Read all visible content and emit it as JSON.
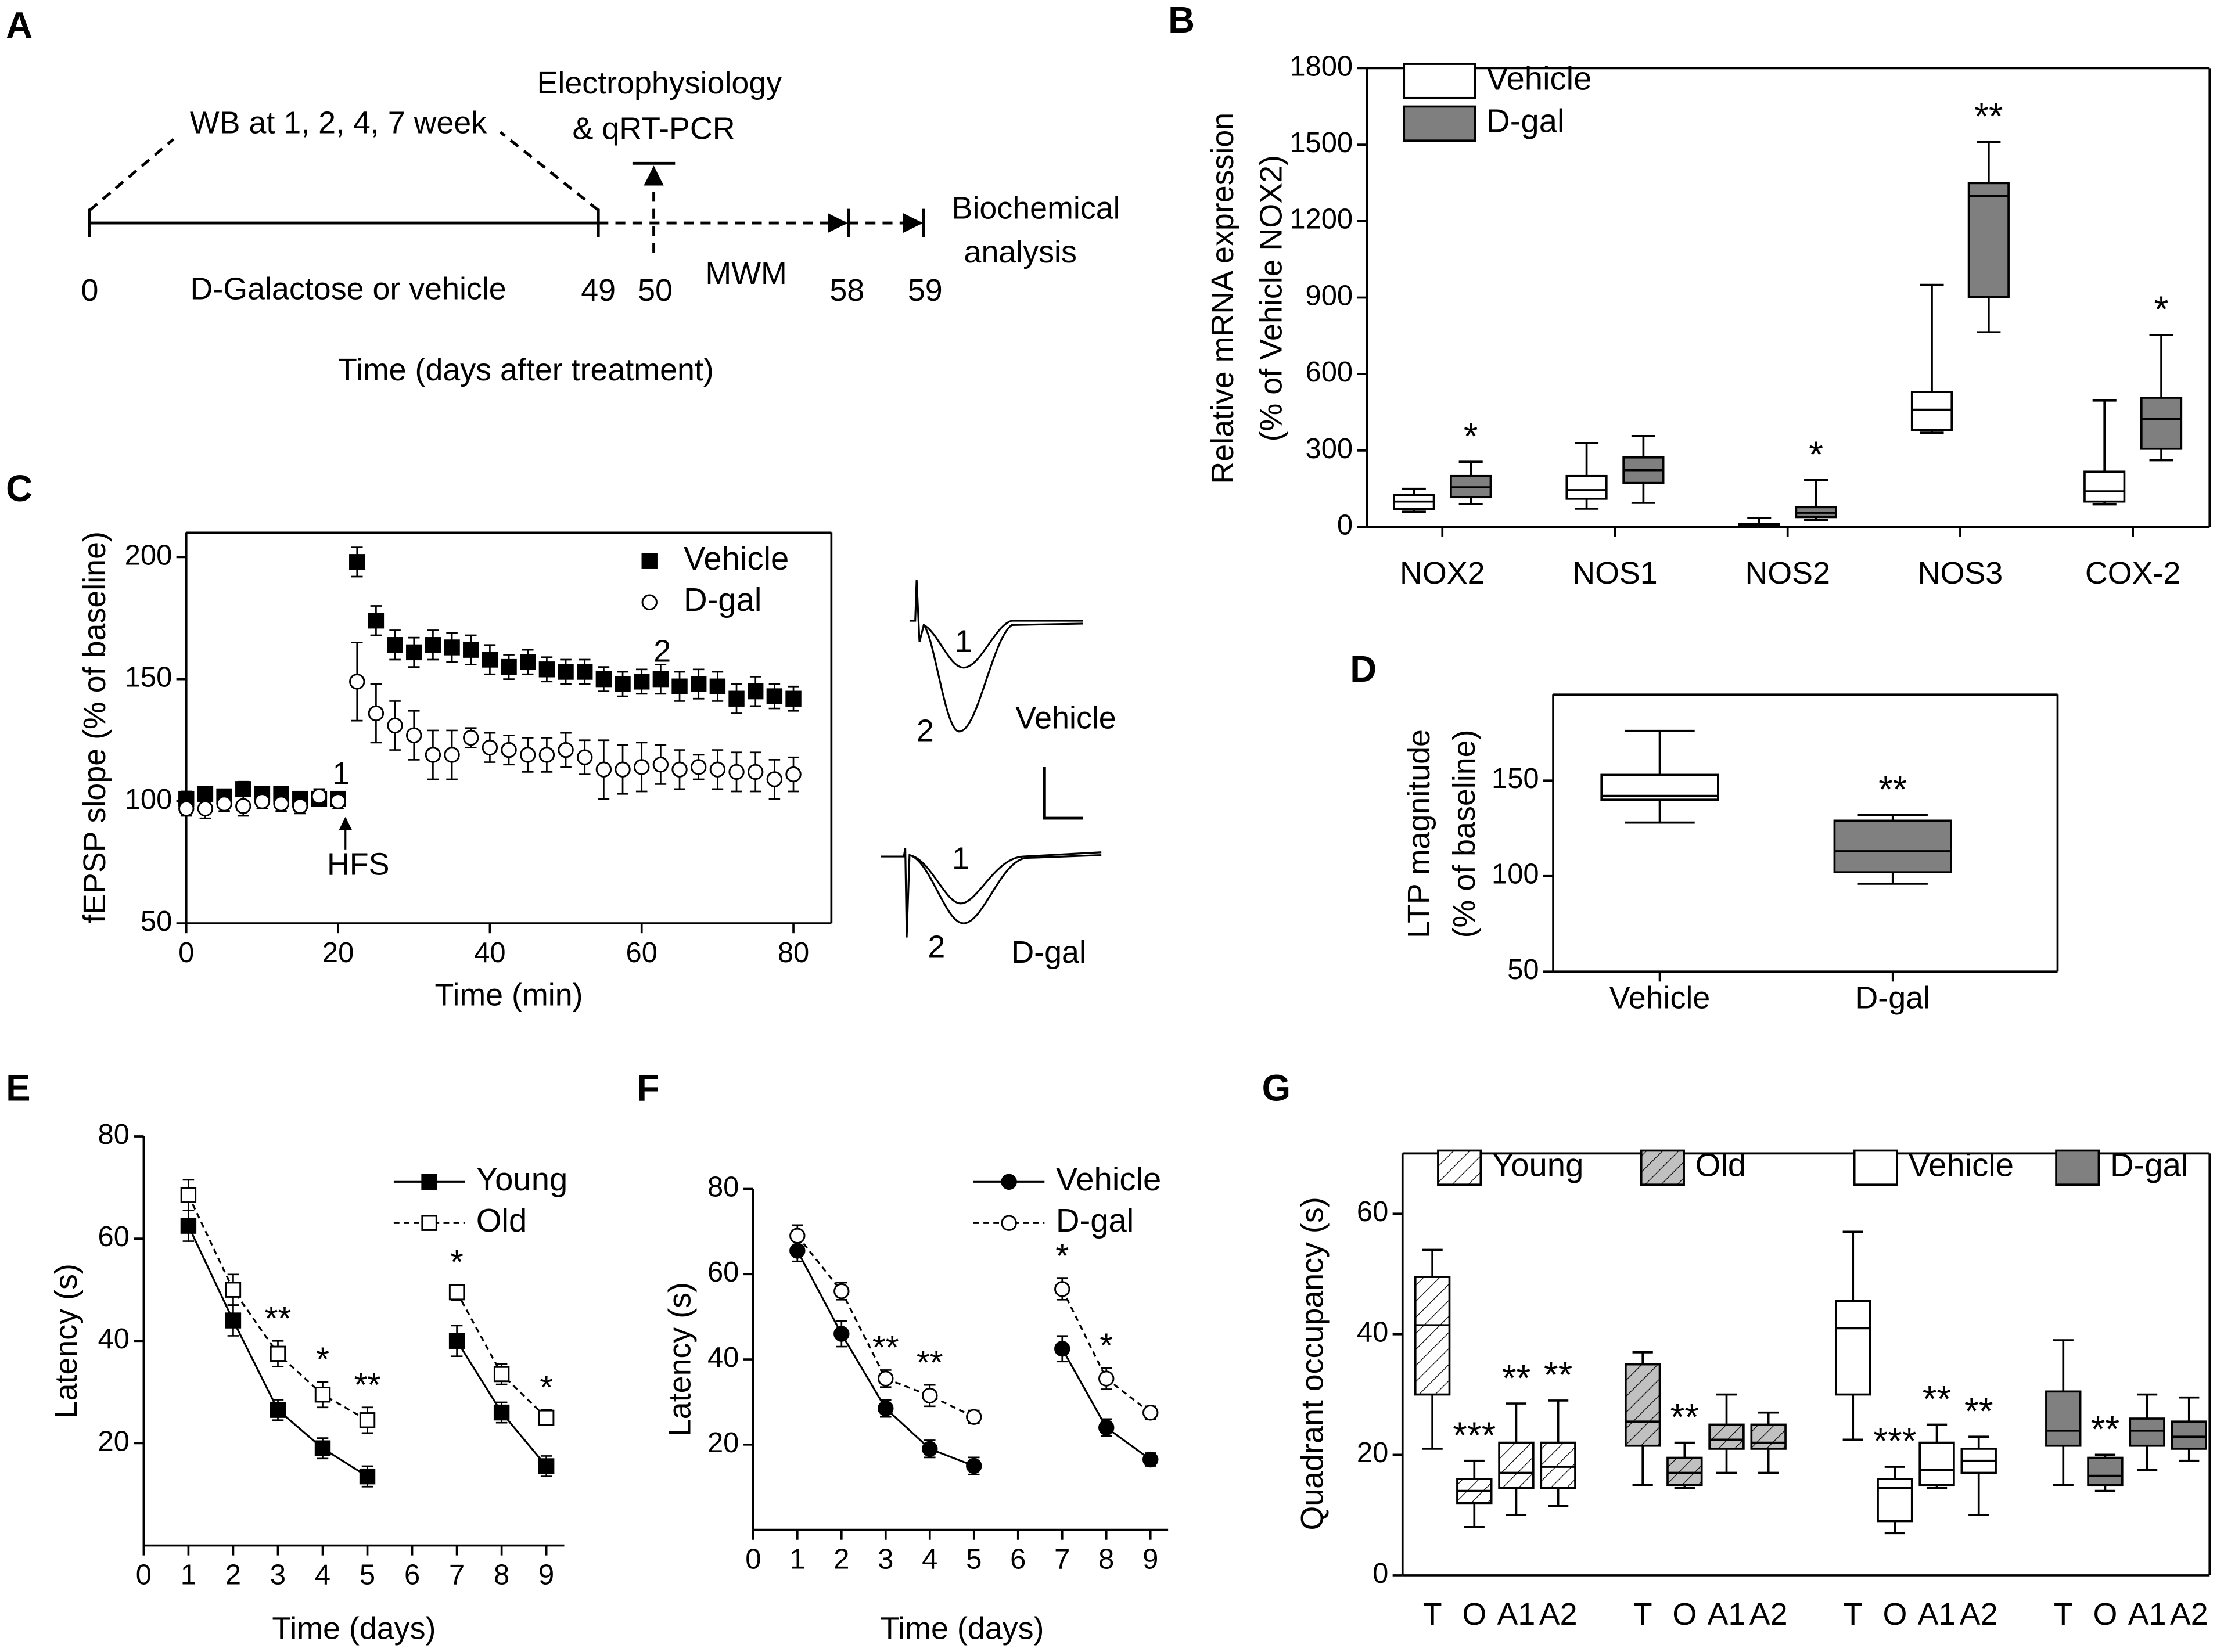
{
  "panel_labels": [
    "A",
    "B",
    "C",
    "D",
    "E",
    "F",
    "G"
  ],
  "timeline": {
    "wb": "WB at 1, 2, 4, 7 week",
    "electro": [
      "Electrophysiology",
      "& qRT-PCR"
    ],
    "biochem": [
      "Biochemical",
      "analysis"
    ],
    "treatment": "D-Galactose or vehicle",
    "mwm": "MWM",
    "ticks": [
      "0",
      "49",
      "50",
      "58",
      "59"
    ],
    "xlabel": "Time (days after treatment)"
  },
  "traces": {
    "vehicle": {
      "name": "Vehicle",
      "labels": [
        "1",
        "2"
      ]
    },
    "dgal": {
      "name": "D-gal",
      "labels": [
        "1",
        "2"
      ]
    }
  },
  "chart_data": [
    {
      "type": "scatter",
      "xlabel": "Time (min)",
      "ylabel": "fEPSP slope (% of baseline)",
      "xlim": [
        0,
        85
      ],
      "xticks": [
        0,
        20,
        40,
        60,
        80
      ],
      "ylim": [
        50,
        210
      ],
      "yticks": [
        50,
        100,
        150,
        200
      ],
      "legend": "upper right",
      "annotations": [
        "1",
        "2",
        "HFS"
      ],
      "x": [
        0,
        2.5,
        5,
        7.5,
        10,
        12.5,
        15,
        17.5,
        20,
        22.5,
        25,
        27.5,
        30,
        32.5,
        35,
        37.5,
        40,
        42.5,
        45,
        47.5,
        50,
        52.5,
        55,
        57.5,
        60,
        62.5,
        65,
        67.5,
        70,
        72.5,
        75,
        77.5,
        80
      ],
      "series": [
        {
          "name": "Vehicle",
          "color": "#000000",
          "marker": "square",
          "marker_fill": "#000000",
          "values": [
            101,
            103,
            102,
            105,
            103,
            103,
            101,
            101,
            101,
            198,
            174,
            164,
            161,
            164,
            163,
            162,
            158,
            155,
            157,
            154,
            153,
            153,
            150,
            148,
            149,
            150,
            147,
            148,
            147,
            142,
            145,
            143,
            142
          ],
          "errors": [
            3,
            3,
            2,
            3,
            2,
            2,
            2,
            2,
            2,
            6,
            6,
            6,
            6,
            6,
            6,
            6,
            6,
            5,
            5,
            5,
            5,
            5,
            5,
            5,
            5,
            6,
            6,
            6,
            6,
            6,
            6,
            5,
            5
          ]
        },
        {
          "name": "D-gal",
          "color": "#000000",
          "marker": "circle",
          "marker_fill": "#ffffff",
          "values": [
            97,
            97,
            99,
            98,
            100,
            99,
            98,
            102,
            100,
            149,
            136,
            131,
            127,
            119,
            119,
            126,
            122,
            121,
            119,
            119,
            121,
            118,
            113,
            113,
            114,
            115,
            113,
            114,
            113,
            112,
            112,
            109,
            111
          ],
          "errors": [
            3,
            4,
            3,
            4,
            3,
            3,
            3,
            3,
            3,
            16,
            12,
            10,
            10,
            10,
            10,
            4,
            6,
            6,
            7,
            7,
            7,
            7,
            12,
            10,
            10,
            8,
            8,
            5,
            8,
            8,
            8,
            8,
            7
          ]
        }
      ]
    },
    {
      "type": "box",
      "ylabel": [
        "Relative mRNA expression",
        "(% of Vehicle NOX2)"
      ],
      "ylim": [
        0,
        1800
      ],
      "yticks": [
        0,
        300,
        600,
        900,
        1200,
        1500,
        1800
      ],
      "legend": "upper left",
      "categories": [
        "NOX2",
        "NOS1",
        "NOS2",
        "NOS3",
        "COX-2"
      ],
      "series": [
        {
          "name": "Vehicle",
          "color": "#ffffff",
          "values": [
            {
              "min": 60,
              "q1": 70,
              "median": 100,
              "q3": 125,
              "max": 150
            },
            {
              "min": 72,
              "q1": 111,
              "median": 145,
              "q3": 200,
              "max": 329
            },
            {
              "min": 0,
              "q1": 2,
              "median": 5,
              "q3": 12,
              "max": 35
            },
            {
              "min": 370,
              "q1": 380,
              "median": 460,
              "q3": 530,
              "max": 950
            },
            {
              "min": 89,
              "q1": 100,
              "median": 140,
              "q3": 217,
              "max": 496
            }
          ]
        },
        {
          "name": "D-gal",
          "color": "#7f7f7f",
          "values": [
            {
              "min": 90,
              "q1": 117,
              "median": 156,
              "q3": 200,
              "max": 256
            },
            {
              "min": 95,
              "q1": 173,
              "median": 223,
              "q3": 273,
              "max": 357
            },
            {
              "min": 28,
              "q1": 39,
              "median": 56,
              "q3": 78,
              "max": 184
            },
            {
              "min": 764,
              "q1": 903,
              "median": 1299,
              "q3": 1349,
              "max": 1511
            },
            {
              "min": 262,
              "q1": 307,
              "median": 424,
              "q3": 507,
              "max": 753
            }
          ],
          "annotations": [
            "*",
            null,
            "*",
            "**",
            "*"
          ]
        }
      ]
    },
    {
      "type": "box",
      "ylabel": [
        "LTP magnitude",
        "(% of baseline)"
      ],
      "ylim": [
        50,
        195
      ],
      "yticks": [
        50,
        100,
        150
      ],
      "categories": [
        "Vehicle",
        "D-gal"
      ],
      "colors": [
        "#ffffff",
        "#808080"
      ],
      "values": [
        {
          "min": 128,
          "q1": 140,
          "median": 142,
          "q3": 153,
          "max": 176
        },
        {
          "min": 96,
          "q1": 102,
          "median": 113,
          "q3": 129,
          "max": 132
        }
      ],
      "annotations": [
        null,
        "**"
      ]
    },
    {
      "type": "line",
      "xlabel": "Time (days)",
      "ylabel": "Latency (s)",
      "xlim": [
        0,
        9.4
      ],
      "xticks": [
        0,
        1,
        2,
        3,
        4,
        5,
        6,
        7,
        8,
        9
      ],
      "ylim": [
        0,
        80
      ],
      "yticks": [
        20,
        40,
        60,
        80
      ],
      "legend": "upper right",
      "x": [
        1,
        2,
        3,
        4,
        5,
        6,
        7,
        8,
        9
      ],
      "series": [
        {
          "name": "Young",
          "color": "#000000",
          "marker": "square",
          "marker_fill": "#000000",
          "linestyle": "solid",
          "values": [
            62.5,
            44,
            26.5,
            19,
            13.5,
            null,
            40,
            26,
            15.5
          ],
          "errors": [
            3,
            3,
            2,
            2,
            2,
            null,
            3,
            2,
            2
          ]
        },
        {
          "name": "Old",
          "color": "#000000",
          "marker": "square",
          "marker_fill": "#ffffff",
          "linestyle": "dashed",
          "values": [
            68.5,
            50,
            37.5,
            29.5,
            24.5,
            null,
            49.5,
            33.5,
            25
          ],
          "errors": [
            3,
            3,
            2.5,
            2.5,
            2.5,
            null,
            1.5,
            2,
            1.5
          ],
          "annotations": [
            null,
            null,
            "**",
            "*",
            "**",
            null,
            "*",
            null,
            "*"
          ]
        }
      ]
    },
    {
      "type": "line",
      "xlabel": "Time (days)",
      "ylabel": "Latency (s)",
      "xlim": [
        0,
        9.4
      ],
      "xticks": [
        0,
        1,
        2,
        3,
        4,
        5,
        6,
        7,
        8,
        9
      ],
      "ylim": [
        0,
        80
      ],
      "yticks": [
        20,
        40,
        60,
        80
      ],
      "legend": "upper right",
      "x": [
        1,
        2,
        3,
        4,
        5,
        6,
        7,
        8,
        9
      ],
      "series": [
        {
          "name": "Vehicle",
          "color": "#000000",
          "marker": "circle",
          "marker_fill": "#000000",
          "linestyle": "solid",
          "values": [
            65.5,
            46,
            28.5,
            19,
            15,
            null,
            42.5,
            24,
            16.5
          ],
          "errors": [
            2.5,
            3,
            2,
            2,
            2,
            null,
            3,
            2,
            1.5
          ]
        },
        {
          "name": "D-gal",
          "color": "#000000",
          "marker": "circle",
          "marker_fill": "#ffffff",
          "linestyle": "dashed",
          "values": [
            69,
            56,
            35.5,
            31.5,
            26.5,
            null,
            56.5,
            35.5,
            27.5
          ],
          "errors": [
            2.5,
            2,
            2,
            2.5,
            1.5,
            null,
            2.5,
            2.5,
            1.5
          ],
          "annotations": [
            null,
            null,
            "**",
            "**",
            null,
            null,
            "*",
            "*",
            null
          ]
        }
      ]
    },
    {
      "type": "box",
      "ylabel": "Quadrant occupancy (s)",
      "ylim": [
        0,
        70
      ],
      "yticks": [
        0,
        20,
        40,
        60
      ],
      "legend": "top",
      "categories": [
        "T",
        "O",
        "A1",
        "A2"
      ],
      "series": [
        {
          "name": "Young",
          "color": "#ffffff",
          "hatch": true,
          "values": [
            {
              "min": 21,
              "q1": 30,
              "median": 41.5,
              "q3": 49.5,
              "max": 54
            },
            {
              "min": 8,
              "q1": 12,
              "median": 14,
              "q3": 16,
              "max": 19
            },
            {
              "min": 10,
              "q1": 14.5,
              "median": 17,
              "q3": 22,
              "max": 28.5
            },
            {
              "min": 11.5,
              "q1": 14.5,
              "median": 18,
              "q3": 22,
              "max": 29
            }
          ],
          "annotations": [
            null,
            "***",
            "**",
            "**"
          ]
        },
        {
          "name": "Old",
          "color": "#c0c0c0",
          "hatch": true,
          "values": [
            {
              "min": 15,
              "q1": 21.5,
              "median": 25.5,
              "q3": 35,
              "max": 37
            },
            {
              "min": 14.5,
              "q1": 15,
              "median": 17,
              "q3": 19.5,
              "max": 22
            },
            {
              "min": 17,
              "q1": 21,
              "median": 22.5,
              "q3": 25,
              "max": 30
            },
            {
              "min": 17,
              "q1": 21,
              "median": 22,
              "q3": 25,
              "max": 27
            }
          ],
          "annotations": [
            null,
            "**",
            null,
            null
          ]
        },
        {
          "name": "Vehicle",
          "color": "#ffffff",
          "values": [
            {
              "min": 22.5,
              "q1": 30,
              "median": 41,
              "q3": 45.5,
              "max": 57
            },
            {
              "min": 7,
              "q1": 9,
              "median": 14.5,
              "q3": 16,
              "max": 18
            },
            {
              "min": 14.5,
              "q1": 15,
              "median": 17.5,
              "q3": 22,
              "max": 25
            },
            {
              "min": 10,
              "q1": 17,
              "median": 19,
              "q3": 21,
              "max": 23
            }
          ],
          "annotations": [
            null,
            "***",
            "**",
            "**"
          ]
        },
        {
          "name": "D-gal",
          "color": "#808080",
          "values": [
            {
              "min": 15,
              "q1": 21.5,
              "median": 24,
              "q3": 30.5,
              "max": 39
            },
            {
              "min": 14,
              "q1": 15,
              "median": 16.5,
              "q3": 19.5,
              "max": 20
            },
            {
              "min": 17.5,
              "q1": 21.5,
              "median": 24,
              "q3": 26,
              "max": 30
            },
            {
              "min": 19,
              "q1": 21,
              "median": 23,
              "q3": 25.5,
              "max": 29.5
            }
          ],
          "annotations": [
            null,
            "**",
            null,
            null
          ]
        }
      ]
    }
  ]
}
